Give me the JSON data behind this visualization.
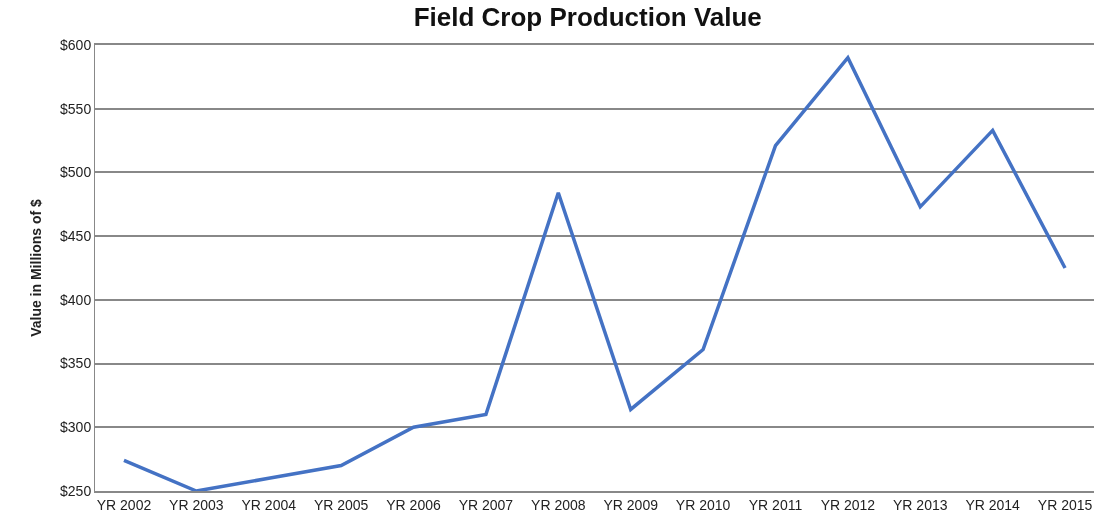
{
  "chart_data": {
    "type": "line",
    "title": "Field Crop Production Value",
    "ylabel": "Value in Millions of $",
    "categories": [
      "YR 2002",
      "YR 2003",
      "YR 2004",
      "YR 2005",
      "YR 2006",
      "YR 2007",
      "YR 2008",
      "YR 2009",
      "YR 2010",
      "YR 2011",
      "YR 2012",
      "YR 2013",
      "YR 2014",
      "YR 2015"
    ],
    "series": [
      {
        "color": "#4472c4",
        "values": [
          274,
          250,
          260,
          270,
          300,
          310,
          484,
          314,
          361,
          521,
          590,
          473,
          533,
          425
        ]
      }
    ],
    "ylim": [
      250,
      600
    ],
    "yticks": [
      {
        "value": 250,
        "label": "$250"
      },
      {
        "value": 300,
        "label": "$300"
      },
      {
        "value": 350,
        "label": "$350"
      },
      {
        "value": 400,
        "label": "$400"
      },
      {
        "value": 450,
        "label": "$450"
      },
      {
        "value": 500,
        "label": "$500"
      },
      {
        "value": 550,
        "label": "$550"
      },
      {
        "value": 600,
        "label": "$600"
      }
    ],
    "grid": "y",
    "legend": false,
    "marker": "none",
    "line_style": "solid"
  }
}
